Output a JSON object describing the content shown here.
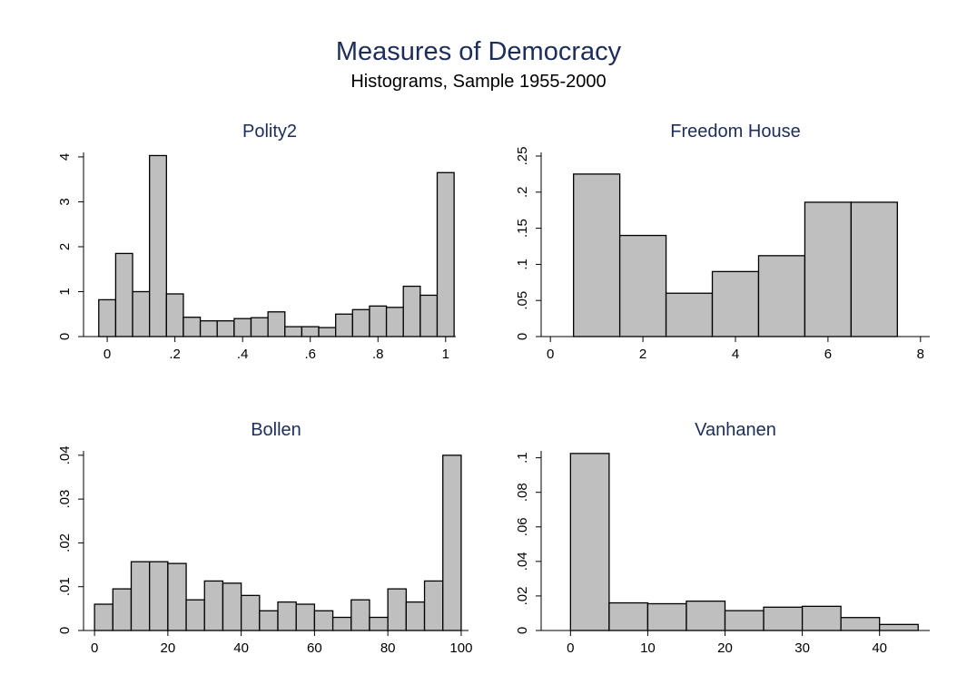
{
  "title": "Measures of Democracy",
  "subtitle": "Histograms, Sample 1955-2000",
  "chart_data": [
    {
      "type": "histogram",
      "title": "Polity2",
      "color": "#bfbfbf",
      "bins": [
        -0.025,
        0.025,
        0.075,
        0.125,
        0.175,
        0.225,
        0.275,
        0.325,
        0.375,
        0.425,
        0.475,
        0.525,
        0.575,
        0.625,
        0.675,
        0.725,
        0.775,
        0.825,
        0.875,
        0.925,
        0.975,
        1.025
      ],
      "values": [
        0.82,
        1.85,
        1.0,
        4.03,
        0.95,
        0.43,
        0.35,
        0.35,
        0.4,
        0.42,
        0.55,
        0.22,
        0.22,
        0.2,
        0.5,
        0.6,
        0.68,
        0.65,
        1.12,
        0.92,
        3.65
      ],
      "xlim": [
        -0.07,
        1.03
      ],
      "xticks": [
        0,
        {
          "value": 0.2,
          "label": ".2"
        },
        {
          "value": 0.4,
          "label": ".4"
        },
        {
          "value": 0.6,
          "label": ".6"
        },
        {
          "value": 0.8,
          "label": ".8"
        },
        1
      ],
      "ylim": [
        0,
        4.1
      ],
      "yticks": [
        0,
        1,
        2,
        3,
        4
      ]
    },
    {
      "type": "histogram",
      "title": "Freedom House",
      "color": "#bfbfbf",
      "bins": [
        0.5,
        1.5,
        2.5,
        3.5,
        4.5,
        5.5,
        6.5,
        7.5
      ],
      "values": [
        0.225,
        0.14,
        0.06,
        0.09,
        0.112,
        0.186,
        0.186
      ],
      "xlim": [
        -0.2,
        8.2
      ],
      "xticks": [
        0,
        2,
        4,
        6,
        8
      ],
      "ylim": [
        0,
        0.255
      ],
      "yticks": [
        0,
        {
          "value": 0.05,
          "label": ".05"
        },
        {
          "value": 0.1,
          "label": ".1"
        },
        {
          "value": 0.15,
          "label": ".15"
        },
        {
          "value": 0.2,
          "label": ".2"
        },
        {
          "value": 0.25,
          "label": ".25"
        }
      ]
    },
    {
      "type": "histogram",
      "title": "Bollen",
      "color": "#bfbfbf",
      "bins": [
        0,
        5,
        10,
        15,
        20,
        25,
        30,
        35,
        40,
        45,
        50,
        55,
        60,
        65,
        70,
        75,
        80,
        85,
        90,
        95,
        100
      ],
      "values": [
        0.006,
        0.0095,
        0.0157,
        0.0157,
        0.0153,
        0.007,
        0.0113,
        0.0108,
        0.008,
        0.0045,
        0.0065,
        0.006,
        0.0045,
        0.003,
        0.007,
        0.003,
        0.0095,
        0.0065,
        0.0113,
        0.04
      ],
      "xlim": [
        -3,
        102
      ],
      "xticks": [
        0,
        20,
        40,
        60,
        80,
        100
      ],
      "ylim": [
        0,
        0.041
      ],
      "yticks": [
        0,
        {
          "value": 0.01,
          "label": ".01"
        },
        {
          "value": 0.02,
          "label": ".02"
        },
        {
          "value": 0.03,
          "label": ".03"
        },
        {
          "value": 0.04,
          "label": ".04"
        }
      ]
    },
    {
      "type": "histogram",
      "title": "Vanhanen",
      "color": "#bfbfbf",
      "bins": [
        0,
        5,
        10,
        15,
        20,
        25,
        30,
        35,
        40,
        45
      ],
      "values": [
        0.1025,
        0.016,
        0.0155,
        0.017,
        0.0115,
        0.0135,
        0.014,
        0.0075,
        0.0035
      ],
      "xlim": [
        -3.8,
        46.5
      ],
      "xticks": [
        0,
        10,
        20,
        30,
        40
      ],
      "ylim": [
        0,
        0.104
      ],
      "yticks": [
        0,
        {
          "value": 0.02,
          "label": ".02"
        },
        {
          "value": 0.04,
          "label": ".04"
        },
        {
          "value": 0.06,
          "label": ".06"
        },
        {
          "value": 0.08,
          "label": ".08"
        },
        {
          "value": 0.1,
          "label": ".1"
        }
      ]
    }
  ]
}
